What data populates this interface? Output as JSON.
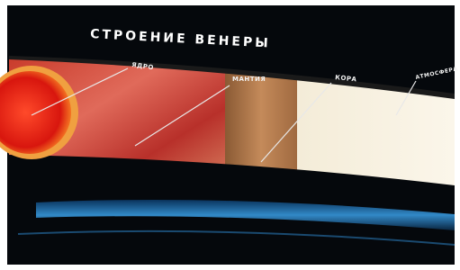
{
  "title": "СТРОЕНИЕ ВЕНЕРЫ",
  "layers": [
    {
      "label": "ЯДРО"
    },
    {
      "label": "МАНТИЯ"
    },
    {
      "label": "КОРА"
    },
    {
      "label": "АТМОСФЕРА"
    }
  ]
}
